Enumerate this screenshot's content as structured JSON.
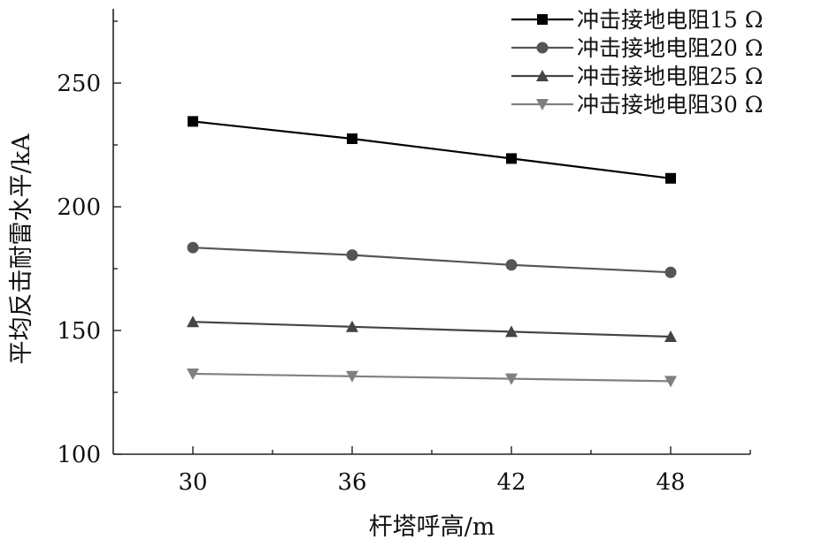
{
  "chart_data": {
    "type": "line",
    "xlabel": "杆塔呼高/m",
    "ylabel": "平均反击耐雷水平/kA",
    "x": [
      30,
      36,
      42,
      48
    ],
    "xlim": [
      27,
      51
    ],
    "ylim": [
      100,
      280
    ],
    "xticks": [
      30,
      36,
      42,
      48
    ],
    "yticks": [
      100,
      150,
      200,
      250
    ],
    "grid": false,
    "legend_position": "top-right",
    "series": [
      {
        "name": "冲击接地电阻15 Ω",
        "values": [
          234.5,
          227.5,
          219.5,
          211.5
        ],
        "color": "#000000",
        "marker": "square"
      },
      {
        "name": "冲击接地电阻20 Ω",
        "values": [
          183.5,
          180.5,
          176.5,
          173.5
        ],
        "color": "#555555",
        "marker": "circle"
      },
      {
        "name": "冲击接地电阻25 Ω",
        "values": [
          153.5,
          151.5,
          149.5,
          147.5
        ],
        "color": "#444444",
        "marker": "triangle-up"
      },
      {
        "name": "冲击接地电阻30 Ω",
        "values": [
          132.5,
          131.5,
          130.5,
          129.5
        ],
        "color": "#808080",
        "marker": "triangle-down"
      }
    ]
  }
}
